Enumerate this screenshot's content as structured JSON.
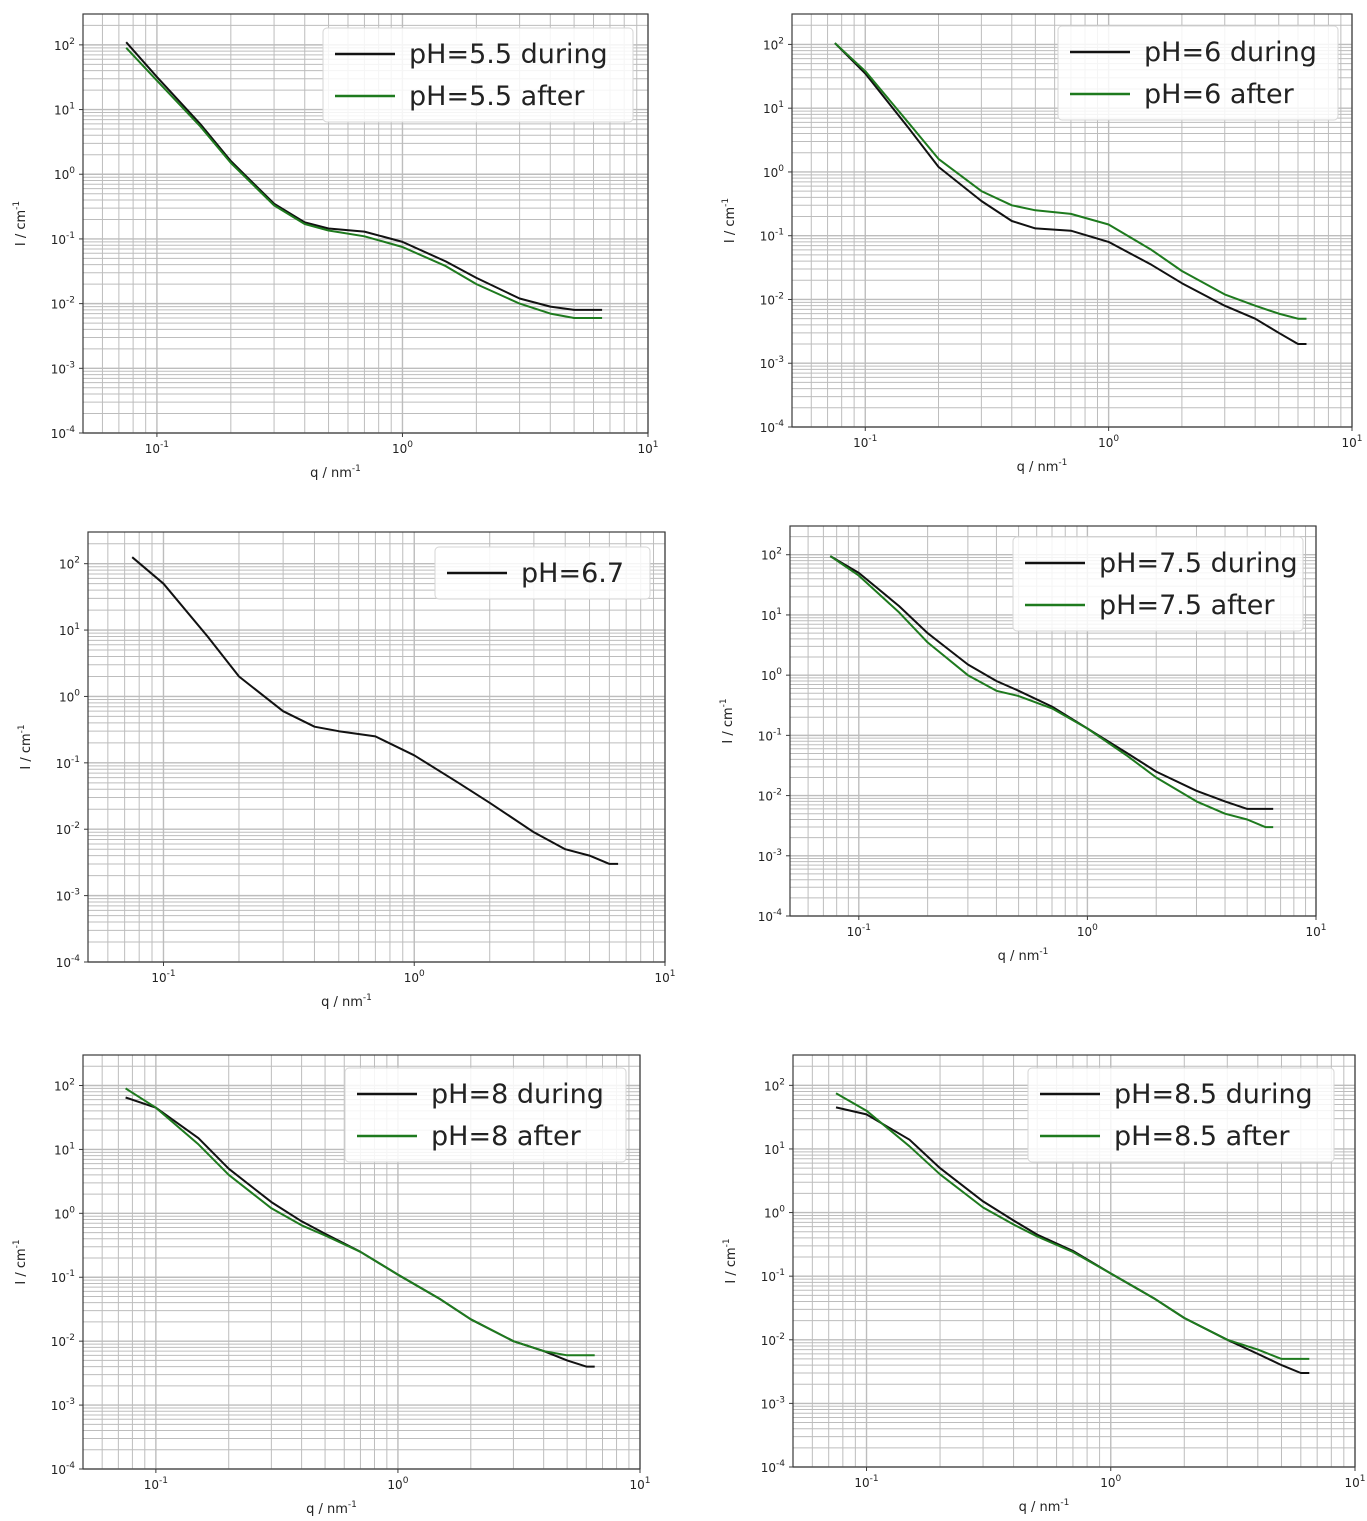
{
  "figure": {
    "axis_colors": {
      "frame": "#3a3a3a",
      "grid": "#bdbdbd"
    },
    "series_colors": {
      "during": "#111111",
      "after": "#1e7a1e"
    }
  },
  "chart_data": [
    {
      "type": "line",
      "id": "p1",
      "title": "",
      "xlabel": "q / nm",
      "xlabel_sup": "-1",
      "ylabel": "I / cm",
      "ylabel_sup": "-1",
      "xscale": "log",
      "yscale": "log",
      "xlim": [
        0.05,
        10
      ],
      "ylim": [
        0.0001,
        300
      ],
      "xticks": [
        {
          "base": "10",
          "exp": "-1",
          "value": 0.1
        },
        {
          "base": "10",
          "exp": "0",
          "value": 1
        },
        {
          "base": "10",
          "exp": "1",
          "value": 10
        }
      ],
      "yticks": [
        {
          "base": "10",
          "exp": "-4",
          "value": 0.0001
        },
        {
          "base": "10",
          "exp": "-3",
          "value": 0.001
        },
        {
          "base": "10",
          "exp": "-2",
          "value": 0.01
        },
        {
          "base": "10",
          "exp": "-1",
          "value": 0.1
        },
        {
          "base": "10",
          "exp": "0",
          "value": 1
        },
        {
          "base": "10",
          "exp": "1",
          "value": 10
        },
        {
          "base": "10",
          "exp": "2",
          "value": 100
        }
      ],
      "grid": true,
      "legend_position": "top-right",
      "series": [
        {
          "name": "pH=5.5 during",
          "color": "#111111",
          "x": [
            0.075,
            0.1,
            0.15,
            0.2,
            0.3,
            0.4,
            0.5,
            0.7,
            1.0,
            1.5,
            2.0,
            3.0,
            4.0,
            5.0,
            6.0,
            6.5
          ],
          "y": [
            110,
            32,
            6.0,
            1.6,
            0.35,
            0.18,
            0.145,
            0.13,
            0.09,
            0.045,
            0.025,
            0.012,
            0.009,
            0.008,
            0.008,
            0.008
          ]
        },
        {
          "name": "pH=5.5 after",
          "color": "#1e7a1e",
          "x": [
            0.075,
            0.1,
            0.15,
            0.2,
            0.3,
            0.4,
            0.5,
            0.7,
            1.0,
            1.5,
            2.0,
            3.0,
            4.0,
            5.0,
            6.0,
            6.5
          ],
          "y": [
            90,
            28,
            5.5,
            1.5,
            0.33,
            0.17,
            0.135,
            0.11,
            0.075,
            0.038,
            0.02,
            0.01,
            0.007,
            0.006,
            0.006,
            0.006
          ]
        }
      ]
    },
    {
      "type": "line",
      "id": "p2",
      "title": "",
      "xlabel": "q / nm",
      "xlabel_sup": "-1",
      "ylabel": "I / cm",
      "ylabel_sup": "-1",
      "xscale": "log",
      "yscale": "log",
      "xlim": [
        0.05,
        10
      ],
      "ylim": [
        0.0001,
        300
      ],
      "xticks": [
        {
          "base": "10",
          "exp": "-1",
          "value": 0.1
        },
        {
          "base": "10",
          "exp": "0",
          "value": 1
        },
        {
          "base": "10",
          "exp": "1",
          "value": 10
        }
      ],
      "yticks": [
        {
          "base": "10",
          "exp": "-4",
          "value": 0.0001
        },
        {
          "base": "10",
          "exp": "-3",
          "value": 0.001
        },
        {
          "base": "10",
          "exp": "-2",
          "value": 0.01
        },
        {
          "base": "10",
          "exp": "-1",
          "value": 0.1
        },
        {
          "base": "10",
          "exp": "0",
          "value": 1
        },
        {
          "base": "10",
          "exp": "1",
          "value": 10
        },
        {
          "base": "10",
          "exp": "2",
          "value": 100
        }
      ],
      "grid": true,
      "legend_position": "top-right",
      "series": [
        {
          "name": "pH=6 during",
          "color": "#111111",
          "x": [
            0.075,
            0.1,
            0.15,
            0.2,
            0.3,
            0.4,
            0.5,
            0.7,
            1.0,
            1.5,
            2.0,
            3.0,
            4.0,
            5.0,
            6.0,
            6.5
          ],
          "y": [
            105,
            35,
            5.0,
            1.2,
            0.35,
            0.17,
            0.13,
            0.12,
            0.08,
            0.035,
            0.018,
            0.008,
            0.005,
            0.003,
            0.002,
            0.002
          ]
        },
        {
          "name": "pH=6 after",
          "color": "#1e7a1e",
          "x": [
            0.075,
            0.1,
            0.15,
            0.2,
            0.3,
            0.4,
            0.5,
            0.7,
            1.0,
            1.5,
            2.0,
            3.0,
            4.0,
            5.0,
            6.0,
            6.5
          ],
          "y": [
            105,
            38,
            6.0,
            1.6,
            0.5,
            0.3,
            0.25,
            0.22,
            0.15,
            0.06,
            0.028,
            0.012,
            0.008,
            0.006,
            0.005,
            0.005
          ]
        }
      ]
    },
    {
      "type": "line",
      "id": "p3",
      "title": "",
      "xlabel": "q / nm",
      "xlabel_sup": "-1",
      "ylabel": "I / cm",
      "ylabel_sup": "-1",
      "xscale": "log",
      "yscale": "log",
      "xlim": [
        0.05,
        10
      ],
      "ylim": [
        0.0001,
        300
      ],
      "xticks": [
        {
          "base": "10",
          "exp": "-1",
          "value": 0.1
        },
        {
          "base": "10",
          "exp": "0",
          "value": 1
        },
        {
          "base": "10",
          "exp": "1",
          "value": 10
        }
      ],
      "yticks": [
        {
          "base": "10",
          "exp": "-4",
          "value": 0.0001
        },
        {
          "base": "10",
          "exp": "-3",
          "value": 0.001
        },
        {
          "base": "10",
          "exp": "-2",
          "value": 0.01
        },
        {
          "base": "10",
          "exp": "-1",
          "value": 0.1
        },
        {
          "base": "10",
          "exp": "0",
          "value": 1
        },
        {
          "base": "10",
          "exp": "1",
          "value": 10
        },
        {
          "base": "10",
          "exp": "2",
          "value": 100
        }
      ],
      "grid": true,
      "legend_position": "top-right",
      "series": [
        {
          "name": "pH=6.7",
          "color": "#111111",
          "x": [
            0.075,
            0.1,
            0.15,
            0.2,
            0.3,
            0.4,
            0.5,
            0.7,
            1.0,
            1.5,
            2.0,
            3.0,
            4.0,
            5.0,
            6.0,
            6.5
          ],
          "y": [
            125,
            50,
            8.0,
            2.0,
            0.6,
            0.35,
            0.3,
            0.25,
            0.13,
            0.05,
            0.025,
            0.009,
            0.005,
            0.004,
            0.003,
            0.003
          ]
        }
      ]
    },
    {
      "type": "line",
      "id": "p4",
      "title": "",
      "xlabel": "q / nm",
      "xlabel_sup": "-1",
      "ylabel": "I / cm",
      "ylabel_sup": "-1",
      "xscale": "log",
      "yscale": "log",
      "xlim": [
        0.05,
        10
      ],
      "ylim": [
        0.0001,
        300
      ],
      "xticks": [
        {
          "base": "10",
          "exp": "-1",
          "value": 0.1
        },
        {
          "base": "10",
          "exp": "0",
          "value": 1
        },
        {
          "base": "10",
          "exp": "1",
          "value": 10
        }
      ],
      "yticks": [
        {
          "base": "10",
          "exp": "-4",
          "value": 0.0001
        },
        {
          "base": "10",
          "exp": "-3",
          "value": 0.001
        },
        {
          "base": "10",
          "exp": "-2",
          "value": 0.01
        },
        {
          "base": "10",
          "exp": "-1",
          "value": 0.1
        },
        {
          "base": "10",
          "exp": "0",
          "value": 1
        },
        {
          "base": "10",
          "exp": "1",
          "value": 10
        },
        {
          "base": "10",
          "exp": "2",
          "value": 100
        }
      ],
      "grid": true,
      "legend_position": "top-right",
      "series": [
        {
          "name": "pH=7.5 during",
          "color": "#111111",
          "x": [
            0.075,
            0.1,
            0.15,
            0.2,
            0.3,
            0.4,
            0.5,
            0.7,
            1.0,
            1.5,
            2.0,
            3.0,
            4.0,
            5.0,
            6.0,
            6.5
          ],
          "y": [
            95,
            50,
            14,
            5.0,
            1.5,
            0.8,
            0.55,
            0.3,
            0.13,
            0.05,
            0.025,
            0.012,
            0.008,
            0.006,
            0.006,
            0.006
          ]
        },
        {
          "name": "pH=7.5 after",
          "color": "#1e7a1e",
          "x": [
            0.075,
            0.1,
            0.15,
            0.2,
            0.3,
            0.4,
            0.5,
            0.7,
            1.0,
            1.5,
            2.0,
            3.0,
            4.0,
            5.0,
            6.0,
            6.5
          ],
          "y": [
            95,
            45,
            11,
            3.5,
            1.0,
            0.55,
            0.45,
            0.28,
            0.13,
            0.045,
            0.02,
            0.008,
            0.005,
            0.004,
            0.003,
            0.003
          ]
        }
      ]
    },
    {
      "type": "line",
      "id": "p5",
      "title": "",
      "xlabel": "q / nm",
      "xlabel_sup": "-1",
      "ylabel": "I / cm",
      "ylabel_sup": "-1",
      "xscale": "log",
      "yscale": "log",
      "xlim": [
        0.05,
        10
      ],
      "ylim": [
        0.0001,
        300
      ],
      "xticks": [
        {
          "base": "10",
          "exp": "-1",
          "value": 0.1
        },
        {
          "base": "10",
          "exp": "0",
          "value": 1
        },
        {
          "base": "10",
          "exp": "1",
          "value": 10
        }
      ],
      "yticks": [
        {
          "base": "10",
          "exp": "-4",
          "value": 0.0001
        },
        {
          "base": "10",
          "exp": "-3",
          "value": 0.001
        },
        {
          "base": "10",
          "exp": "-2",
          "value": 0.01
        },
        {
          "base": "10",
          "exp": "-1",
          "value": 0.1
        },
        {
          "base": "10",
          "exp": "0",
          "value": 1
        },
        {
          "base": "10",
          "exp": "1",
          "value": 10
        },
        {
          "base": "10",
          "exp": "2",
          "value": 100
        }
      ],
      "grid": true,
      "legend_position": "top-right",
      "series": [
        {
          "name": "pH=8 during",
          "color": "#111111",
          "x": [
            0.075,
            0.1,
            0.15,
            0.2,
            0.3,
            0.4,
            0.5,
            0.7,
            1.0,
            1.5,
            2.0,
            3.0,
            4.0,
            5.0,
            6.0,
            6.5
          ],
          "y": [
            65,
            45,
            15,
            5.0,
            1.5,
            0.75,
            0.48,
            0.25,
            0.11,
            0.045,
            0.022,
            0.01,
            0.007,
            0.005,
            0.004,
            0.004
          ]
        },
        {
          "name": "pH=8 after",
          "color": "#1e7a1e",
          "x": [
            0.075,
            0.1,
            0.15,
            0.2,
            0.3,
            0.4,
            0.5,
            0.7,
            1.0,
            1.5,
            2.0,
            3.0,
            4.0,
            5.0,
            6.0,
            6.5
          ],
          "y": [
            90,
            45,
            12,
            4.0,
            1.2,
            0.65,
            0.45,
            0.25,
            0.11,
            0.045,
            0.022,
            0.01,
            0.007,
            0.006,
            0.006,
            0.006
          ]
        }
      ]
    },
    {
      "type": "line",
      "id": "p6",
      "title": "",
      "xlabel": "q / nm",
      "xlabel_sup": "-1",
      "ylabel": "I / cm",
      "ylabel_sup": "-1",
      "xscale": "log",
      "yscale": "log",
      "xlim": [
        0.05,
        10
      ],
      "ylim": [
        0.0001,
        300
      ],
      "xticks": [
        {
          "base": "10",
          "exp": "-1",
          "value": 0.1
        },
        {
          "base": "10",
          "exp": "0",
          "value": 1
        },
        {
          "base": "10",
          "exp": "1",
          "value": 10
        }
      ],
      "yticks": [
        {
          "base": "10",
          "exp": "-4",
          "value": 0.0001
        },
        {
          "base": "10",
          "exp": "-3",
          "value": 0.001
        },
        {
          "base": "10",
          "exp": "-2",
          "value": 0.01
        },
        {
          "base": "10",
          "exp": "-1",
          "value": 0.1
        },
        {
          "base": "10",
          "exp": "0",
          "value": 1
        },
        {
          "base": "10",
          "exp": "1",
          "value": 10
        },
        {
          "base": "10",
          "exp": "2",
          "value": 100
        }
      ],
      "grid": true,
      "legend_position": "top-right",
      "series": [
        {
          "name": "pH=8.5 during",
          "color": "#111111",
          "x": [
            0.075,
            0.1,
            0.15,
            0.2,
            0.3,
            0.4,
            0.5,
            0.7,
            1.0,
            1.5,
            2.0,
            3.0,
            4.0,
            5.0,
            6.0,
            6.5
          ],
          "y": [
            45,
            35,
            14,
            5.0,
            1.5,
            0.75,
            0.45,
            0.25,
            0.11,
            0.045,
            0.022,
            0.01,
            0.006,
            0.004,
            0.003,
            0.003
          ]
        },
        {
          "name": "pH=8.5 after",
          "color": "#1e7a1e",
          "x": [
            0.075,
            0.1,
            0.15,
            0.2,
            0.3,
            0.4,
            0.5,
            0.7,
            1.0,
            1.5,
            2.0,
            3.0,
            4.0,
            5.0,
            6.0,
            6.5
          ],
          "y": [
            75,
            40,
            11,
            4.0,
            1.2,
            0.65,
            0.42,
            0.24,
            0.11,
            0.045,
            0.022,
            0.01,
            0.007,
            0.005,
            0.005,
            0.005
          ]
        }
      ]
    }
  ]
}
